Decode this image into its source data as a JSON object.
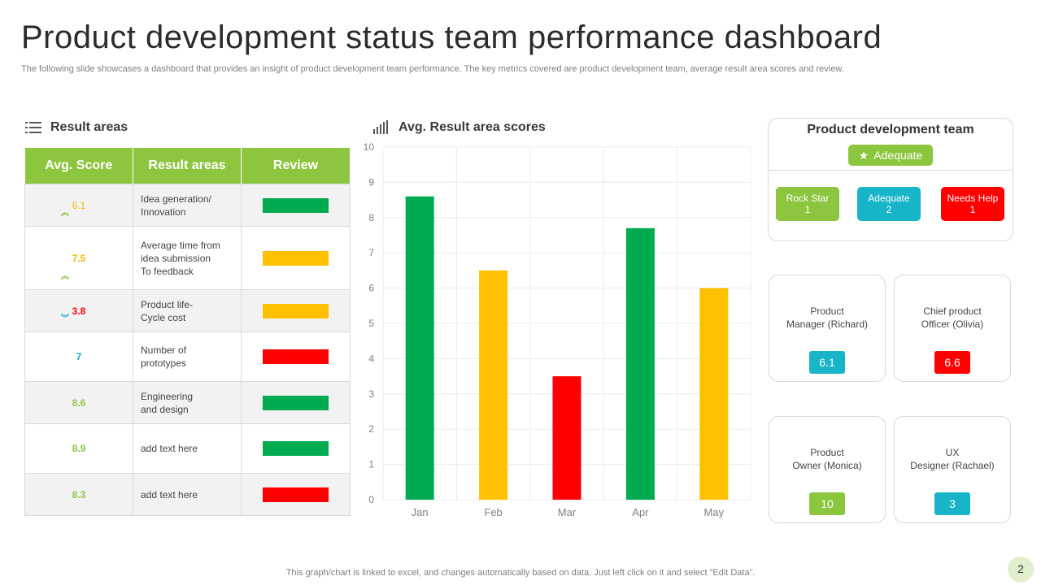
{
  "title": "Product development status team performance dashboard",
  "subtitle": "The following slide showcases a dashboard that provides an insight of product development team performance. The key metrics covered are product development team, average result area scores and review.",
  "result_areas": {
    "heading": "Result areas",
    "columns": [
      "Avg. Score",
      "Result areas",
      "Review"
    ],
    "rows": [
      {
        "score": "6.1",
        "score_color": "#f5b800",
        "arrow": "up",
        "arrow_color": "#8cc63f",
        "area_lines": [
          "Idea generation/",
          "Innovation"
        ],
        "review_color": "#00aa4f"
      },
      {
        "score": "7.5",
        "score_color": "#f5b800",
        "arrow": "up",
        "arrow_color": "#8cc63f",
        "area_lines": [
          "Average  time from",
          "idea submission",
          "To feedback"
        ],
        "review_color": "#ffc000"
      },
      {
        "score": "3.8",
        "score_color": "#ff0000",
        "arrow": "down",
        "arrow_color": "#18b4c8",
        "area_lines": [
          "Product life-",
          "Cycle cost"
        ],
        "review_color": "#ffc000"
      },
      {
        "score": "7",
        "score_color": "#1aa3d9",
        "arrow": "",
        "arrow_color": "",
        "area_lines": [
          "Number  of",
          "prototypes"
        ],
        "review_color": "#ff0000"
      },
      {
        "score": "8.6",
        "score_color": "#8cc63f",
        "arrow": "",
        "arrow_color": "",
        "area_lines": [
          "Engineering",
          "and design"
        ],
        "review_color": "#00aa4f"
      },
      {
        "score": "8.9",
        "score_color": "#8cc63f",
        "arrow": "",
        "arrow_color": "",
        "area_lines": [
          "add text here"
        ],
        "review_color": "#00aa4f"
      },
      {
        "score": "8.3",
        "score_color": "#8cc63f",
        "arrow": "",
        "arrow_color": "",
        "area_lines": [
          "add text here"
        ],
        "review_color": "#ff0000"
      }
    ]
  },
  "chart_heading": "Avg. Result  area scores",
  "chart_data": {
    "type": "bar",
    "categories": [
      "Jan",
      "Feb",
      "Mar",
      "Apr",
      "May"
    ],
    "values": [
      8.6,
      6.5,
      3.5,
      7.7,
      6.0
    ],
    "colors": [
      "#00aa4f",
      "#ffc000",
      "#ff0000",
      "#00aa4f",
      "#ffc000"
    ],
    "ylim": [
      0,
      10
    ],
    "yticks": [
      0,
      1,
      2,
      3,
      4,
      5,
      6,
      7,
      8,
      9,
      10
    ],
    "grid": true,
    "title": "Avg. Result  area scores",
    "xlabel": "",
    "ylabel": ""
  },
  "team": {
    "title": "Product development team",
    "status_label": "Adequate",
    "pills": [
      {
        "label": "Rock Star",
        "count": "1",
        "color": "#8cc63f"
      },
      {
        "label": "Adequate",
        "count": "2",
        "color": "#18b4c8"
      },
      {
        "label": "Needs Help",
        "count": "1",
        "color": "#ff0000"
      }
    ]
  },
  "people": [
    {
      "name_lines": [
        "Product",
        "Manager  (Richard)"
      ],
      "score": "6.1",
      "color": "#18b4c8"
    },
    {
      "name_lines": [
        "Chief  product",
        "Officer  (Olivia)"
      ],
      "score": "6.6",
      "color": "#ff0000"
    },
    {
      "name_lines": [
        "Product",
        "Owner  (Monica)"
      ],
      "score": "10",
      "color": "#8cc63f"
    },
    {
      "name_lines": [
        "UX",
        "Designer  (Rachael)"
      ],
      "score": "3",
      "color": "#18b4c8"
    }
  ],
  "footer": "This graph/chart is linked to excel,  and changes automatically based on data. Just left click on it and select “Edit Data”.",
  "page_number": "2",
  "colors": {
    "accent": "#8cc63f",
    "green": "#00aa4f",
    "amber": "#ffc000",
    "red": "#ff0000",
    "teal": "#18b4c8"
  }
}
